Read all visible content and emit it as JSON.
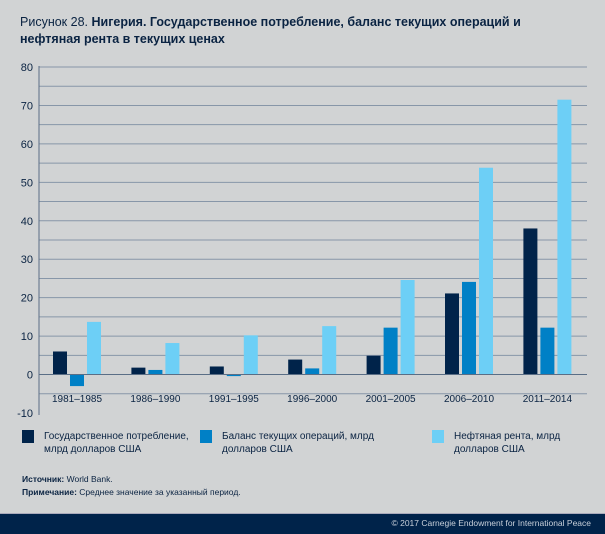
{
  "title": {
    "prefix": "Рисунок 28.",
    "text": "Нигерия. Государственное потребление, баланс текущих операций и нефтяная рента в текущих ценах"
  },
  "chart_data": {
    "type": "bar",
    "categories": [
      "1981–1985",
      "1986–1990",
      "1991–1995",
      "1996–2000",
      "2001–2005",
      "2006–2010",
      "2011–2014"
    ],
    "series": [
      {
        "name": "Государственное потребление, млрд долларов США",
        "color": "#00234a",
        "values": [
          6.0,
          1.8,
          2.1,
          3.9,
          4.9,
          21.1,
          38.0
        ]
      },
      {
        "name": "Баланс текущих операций, млрд долларов США",
        "color": "#0080c6",
        "values": [
          -3.0,
          1.2,
          -0.4,
          1.6,
          12.2,
          24.1,
          12.2
        ]
      },
      {
        "name": "Нефтяная рента, млрд долларов США",
        "color": "#6dcff6",
        "values": [
          13.7,
          8.2,
          10.2,
          12.6,
          24.6,
          53.8,
          71.5
        ]
      }
    ],
    "ylim": [
      -10,
      80
    ],
    "yticks": [
      "80",
      "70",
      "60",
      "50",
      "40",
      "30",
      "20",
      "10",
      "0",
      "-10"
    ],
    "ytick_values": [
      80,
      70,
      60,
      50,
      40,
      30,
      20,
      10,
      0,
      -10
    ],
    "grid": true,
    "legend": "bottom"
  },
  "notes": {
    "source_label": "Источник:",
    "source": " World Bank.",
    "note_label": "Примечание:",
    "note": " Среднее значение за указанный период."
  },
  "footer": "© 2017 Carnegie Endowment for International Peace"
}
